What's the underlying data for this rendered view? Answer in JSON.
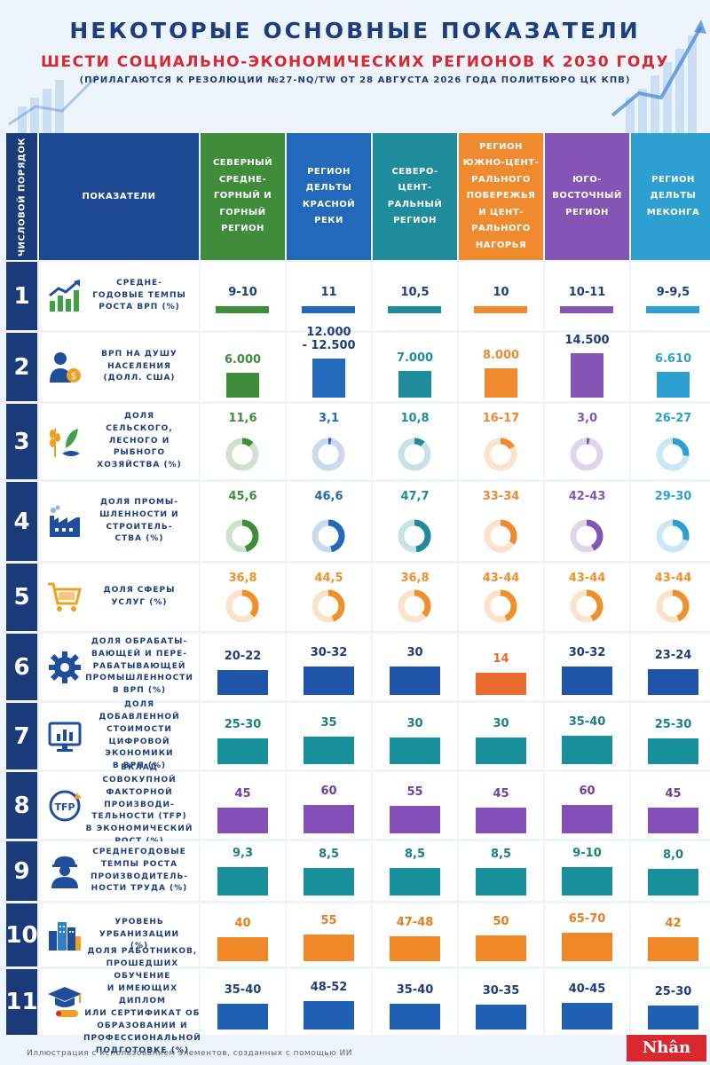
{
  "header": {
    "title": "НЕКОТОРЫЕ ОСНОВНЫЕ ПОКАЗАТЕЛИ",
    "subtitle": "ШЕСТИ СОЦИАЛЬНО-ЭКОНОМИЧЕСКИХ РЕГИОНОВ К 2030 ГОДУ",
    "note": "(ПРИЛАГАЮТСЯ К РЕЗОЛЮЦИИ №27-NQ/TW ОТ 28 АВГУСТА 2026 ГОДА ПОЛИТБЮРО ЦК КПВ)"
  },
  "table": {
    "order_label": "ЧИСЛОВОЙ ПОРЯДОК",
    "indicator_label": "ПОКАЗАТЕЛИ",
    "regions": [
      {
        "name": "СЕВЕРНЫЙ\nСРЕДНЕ-\nГОРНЫЙ И\nГОРНЫЙ\nРЕГИОН",
        "color": "#3f8c3a"
      },
      {
        "name": "РЕГИОН\nДЕЛЬТЫ\nКРАСНОЙ\nРЕКИ",
        "color": "#2369bb"
      },
      {
        "name": "СЕВЕРО-\nЦЕНТ-\nРАЛЬНЫЙ\nРЕГИОН",
        "color": "#1f8c9c"
      },
      {
        "name": "РЕГИОН\nЮЖНО-ЦЕНТ-\nРАЛЬНОГО\nПОБЕРЕЖЬЯ\nИ ЦЕНТ-\nРАЛЬНОГО\nНАГОРЬЯ",
        "color": "#ef8a2e"
      },
      {
        "name": "ЮГО-\nВОСТОЧНЫЙ\nРЕГИОН",
        "color": "#8455b5"
      },
      {
        "name": "РЕГИОН\nДЕЛЬТЫ\nМЕКОНГА",
        "color": "#2d9fd0"
      }
    ]
  },
  "rows": [
    {
      "num": "1",
      "label": "СРЕДНЕ-\nГОДОВЫЕ ТЕМПЫ\nРОСТА ВРП (%)",
      "icon": "growth-chart-icon",
      "values": [
        "9-10",
        "11",
        "10,5",
        "10",
        "10-11",
        "9-9,5"
      ],
      "kind": "line"
    },
    {
      "num": "2",
      "label": "ВРП НА ДУШУ\nНАСЕЛЕНИЯ\n(ДОЛЛ. США)",
      "icon": "person-money-icon",
      "values": [
        "6.000",
        "12.000\n- 12.500",
        "7.000",
        "8.000",
        "14.500",
        "6.610"
      ],
      "kind": "bar",
      "magnitudes": [
        6000,
        12250,
        7000,
        8000,
        14500,
        6610
      ],
      "max": 14500
    },
    {
      "num": "3",
      "label": "ДОЛЯ\nСЕЛЬСКОГО,\nЛЕСНОГО И\nРЫБНОГО\nХОЗЯЙСТВА (%)",
      "icon": "agriculture-icon",
      "values": [
        "11,6",
        "3,1",
        "10,8",
        "16-17",
        "3,0",
        "26-27"
      ],
      "kind": "donut",
      "percents": [
        11.6,
        3.1,
        10.8,
        16.5,
        3.0,
        26.5
      ]
    },
    {
      "num": "4",
      "label": "ДОЛЯ ПРОМЫ-\nШЛЕННОСТИ И\nСТРОИТЕЛЬ-\nСТВА (%)",
      "icon": "factory-icon",
      "values": [
        "45,6",
        "46,6",
        "47,7",
        "33-34",
        "42-43",
        "29-30"
      ],
      "kind": "donut",
      "percents": [
        45.6,
        46.6,
        47.7,
        33.5,
        42.5,
        29.5
      ]
    },
    {
      "num": "5",
      "label": "ДОЛЯ СФЕРЫ\nУСЛУГ (%)",
      "icon": "shopping-cart-icon",
      "values": [
        "36,8",
        "44,5",
        "36,8",
        "43-44",
        "43-44",
        "43-44"
      ],
      "kind": "donut-orange",
      "percents": [
        36.8,
        44.5,
        36.8,
        43.5,
        43.5,
        43.5
      ]
    },
    {
      "num": "6",
      "label": "ДОЛЯ ОБРАБАТЫ-\nВАЮЩЕЙ И ПЕРЕ-\nРАБАТЫВАЮЩЕЙ\nПРОМЫШЛЕННОСТИ\nВ ВРП (%)",
      "icon": "gear-icon",
      "values": [
        "20-22",
        "30-32",
        "30",
        "14",
        "30-32",
        "23-24"
      ],
      "kind": "bar6",
      "magnitudes": [
        21,
        31,
        30,
        14,
        31,
        23.5
      ],
      "max": 31
    },
    {
      "num": "7",
      "label": "ДОЛЯ ДОБАВЛЕННОЙ\nСТОИМОСТИ\nЦИФРОВОЙ\nЭКОНОМИКИ\nВ ВРП (%)",
      "icon": "digital-monitor-icon",
      "values": [
        "25-30",
        "35",
        "30",
        "30",
        "35-40",
        "25-30"
      ],
      "kind": "bar7",
      "magnitudes": [
        27.5,
        35,
        30,
        30,
        37.5,
        27.5
      ],
      "max": 37.5
    },
    {
      "num": "8",
      "label": "ВКЛАД СОВОКУПНОЙ\nФАКТОРНОЙ\nПРОИЗВОДИ-\nТЕЛЬНОСТИ (TFP)\nВ ЭКОНОМИЧЕСКИЙ\nРОСТ (%)",
      "icon": "tfp-icon",
      "values": [
        "45",
        "60",
        "55",
        "45",
        "60",
        "45"
      ],
      "kind": "bar8",
      "magnitudes": [
        45,
        60,
        55,
        45,
        60,
        45
      ],
      "max": 60
    },
    {
      "num": "9",
      "label": "СРЕДНЕГОДОВЫЕ\nТЕМПЫ РОСТА\nПРОИЗВОДИТЕЛЬ-\nНОСТИ ТРУДА (%)",
      "icon": "worker-icon",
      "values": [
        "9,3",
        "8,5",
        "8,5",
        "8,5",
        "9-10",
        "8,0"
      ],
      "kind": "bar9",
      "magnitudes": [
        9.3,
        8.5,
        8.5,
        8.5,
        9.5,
        8.0
      ],
      "max": 9.5
    },
    {
      "num": "10",
      "label": "УРОВЕНЬ\nУРБАНИЗАЦИИ\n(%)",
      "icon": "city-buildings-icon",
      "values": [
        "40",
        "55",
        "47-48",
        "50",
        "65-70",
        "42"
      ],
      "kind": "bar10",
      "magnitudes": [
        40,
        55,
        47.5,
        50,
        67.5,
        42
      ],
      "max": 67.5
    },
    {
      "num": "11",
      "label": "ДОЛЯ РАБОТНИКОВ,\nПРОШЕДШИХ ОБУЧЕНИЕ\nИ ИМЕЮЩИХ ДИПЛОМ\nИЛИ СЕРТИФИКАТ ОБ\nОБРАЗОВАНИИ И\nПРОФЕССИОНАЛЬНОЙ\nПОДГОТОВКЕ (%)",
      "icon": "graduation-cap-icon",
      "values": [
        "35-40",
        "48-52",
        "35-40",
        "30-35",
        "40-45",
        "25-30"
      ],
      "kind": "bar11",
      "magnitudes": [
        37.5,
        50,
        37.5,
        32.5,
        42.5,
        27.5
      ],
      "max": 50
    }
  ],
  "footer": {
    "credit": "Иллюстрация с использованием элементов, созданных с помощью ИИ",
    "logo": "Nhân Dân"
  }
}
